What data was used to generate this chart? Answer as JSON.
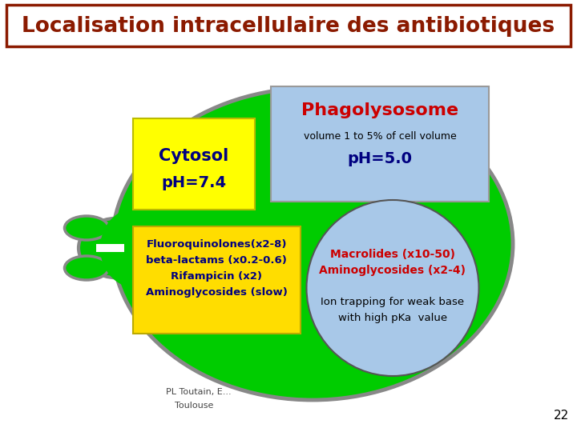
{
  "title": "Localisation intracellulaire des antibiotiques",
  "title_color": "#8B1A00",
  "title_border_color": "#8B1A00",
  "bg_color": "#ffffff",
  "cell_color": "#00CC00",
  "cell_border_color": "#888888",
  "phagolysosome_box_color": "#A8C8E8",
  "phagolysosome_title": "Phagolysosome",
  "phagolysosome_title_color": "#CC0000",
  "phagolysosome_line1": "volume 1 to 5% of cell volume",
  "phagolysosome_line2": "pH=5.0",
  "phagolysosome_text_color": "#000080",
  "cytosol_box_color": "#FFFF00",
  "cytosol_line1": "Cytosol",
  "cytosol_line2": "pH=7.4",
  "cytosol_text_color": "#000080",
  "drugs_box_color": "#FFDD00",
  "drugs_lines": [
    "Fluoroquinolones(x2-8)",
    "beta-lactams (x0.2-0.6)",
    "Rifampicin (x2)",
    "Aminoglycosides (slow)"
  ],
  "drugs_text_color": "#000080",
  "circle_color": "#A8C8E8",
  "macrolides_line1": "Macrolides (x10-50)",
  "macrolides_line2": "Aminoglycosides (x2-4)",
  "macrolides_color": "#CC0000",
  "ion_trapping_line1": "Ion trapping for weak base",
  "ion_trapping_line2": "with high pKa  value",
  "ion_trapping_color": "#000000",
  "footer_line1": "PL Toutain, E...",
  "footer_line2": "Toulouse",
  "page_number": "22"
}
